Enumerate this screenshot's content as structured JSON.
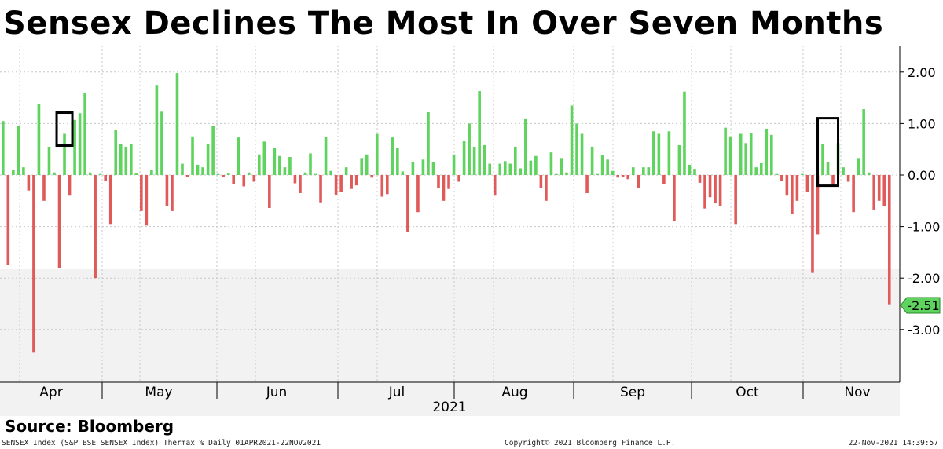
{
  "title": "Sensex Declines The Most In Over Seven Months",
  "source": "Source: Bloomberg",
  "footer": {
    "left": "SENSEX Index (S&P BSE SENSEX Index) Thermax %  Daily 01APR2021-22NOV2021",
    "center": "Copyright© 2021 Bloomberg Finance L.P.",
    "right": "22-Nov-2021 14:39:57"
  },
  "colors": {
    "positive": "#5ed35e",
    "negative": "#e05a5a",
    "grid": "#c8c8c8",
    "callout": "#5ed35e",
    "box": "#000000"
  },
  "chart_data": {
    "type": "bar",
    "series_name": "SENSEX daily % change",
    "year_label": "2021",
    "month_labels": [
      "Apr",
      "May",
      "Jun",
      "Jul",
      "Aug",
      "Sep",
      "Oct",
      "Nov"
    ],
    "y_ticks": [
      2.0,
      1.0,
      0.0,
      -1.0,
      -2.0,
      -3.0
    ],
    "y_tick_labels": [
      "2.00",
      "1.00",
      "0.00",
      "-1.00",
      "-2.00",
      "-3.00"
    ],
    "ylim": [
      -4.0,
      2.55
    ],
    "last_value_label": "-2.51",
    "highlighted_bars": [
      12,
      161
    ],
    "values": [
      1.05,
      -1.75,
      0.1,
      0.95,
      0.15,
      -0.3,
      -3.45,
      1.38,
      -0.5,
      0.55,
      0.05,
      -1.8,
      0.8,
      -0.4,
      1.07,
      1.2,
      1.6,
      0.05,
      -2.0,
      0.02,
      -0.12,
      -0.95,
      0.88,
      0.6,
      0.55,
      0.6,
      0.03,
      -0.7,
      -0.98,
      0.1,
      1.75,
      1.23,
      -0.6,
      -0.7,
      1.98,
      0.22,
      -0.03,
      0.75,
      0.2,
      0.15,
      0.6,
      0.95,
      0.02,
      -0.04,
      0.03,
      -0.17,
      0.73,
      -0.22,
      0.05,
      -0.13,
      0.4,
      0.65,
      -0.64,
      0.52,
      0.37,
      0.15,
      0.35,
      -0.16,
      -0.35,
      0.05,
      0.42,
      0.02,
      -0.53,
      0.74,
      0.08,
      -0.38,
      -0.33,
      0.15,
      -0.27,
      -0.2,
      0.33,
      0.4,
      -0.05,
      0.8,
      -0.42,
      -0.37,
      0.73,
      0.52,
      0.07,
      -1.1,
      0.26,
      -0.72,
      0.3,
      1.22,
      0.25,
      -0.25,
      -0.5,
      -0.27,
      0.4,
      -0.13,
      0.67,
      1.0,
      0.55,
      1.63,
      0.58,
      0.22,
      -0.4,
      0.22,
      0.27,
      0.22,
      0.55,
      0.13,
      1.1,
      0.28,
      0.37,
      -0.25,
      -0.5,
      0.44,
      0.02,
      0.33,
      0.05,
      1.35,
      1.0,
      0.8,
      -0.35,
      0.55,
      0.02,
      0.38,
      0.3,
      0.08,
      -0.05,
      -0.03,
      -0.08,
      0.15,
      -0.25,
      0.15,
      0.15,
      0.85,
      0.8,
      -0.17,
      0.85,
      -0.9,
      0.58,
      1.62,
      0.2,
      0.12,
      -0.15,
      -0.65,
      -0.43,
      -0.55,
      -0.6,
      0.92,
      0.75,
      -0.95,
      0.8,
      0.62,
      0.82,
      0.15,
      0.23,
      0.9,
      0.78,
      0.02,
      -0.12,
      -0.4,
      -0.75,
      -0.5,
      0.02,
      -0.32,
      -1.9,
      -1.15,
      0.6,
      0.25,
      -0.2,
      0.62,
      0.15,
      -0.13,
      -0.72,
      0.33,
      1.28,
      0.05,
      -0.67,
      -0.5,
      -0.6,
      -2.51
    ]
  }
}
